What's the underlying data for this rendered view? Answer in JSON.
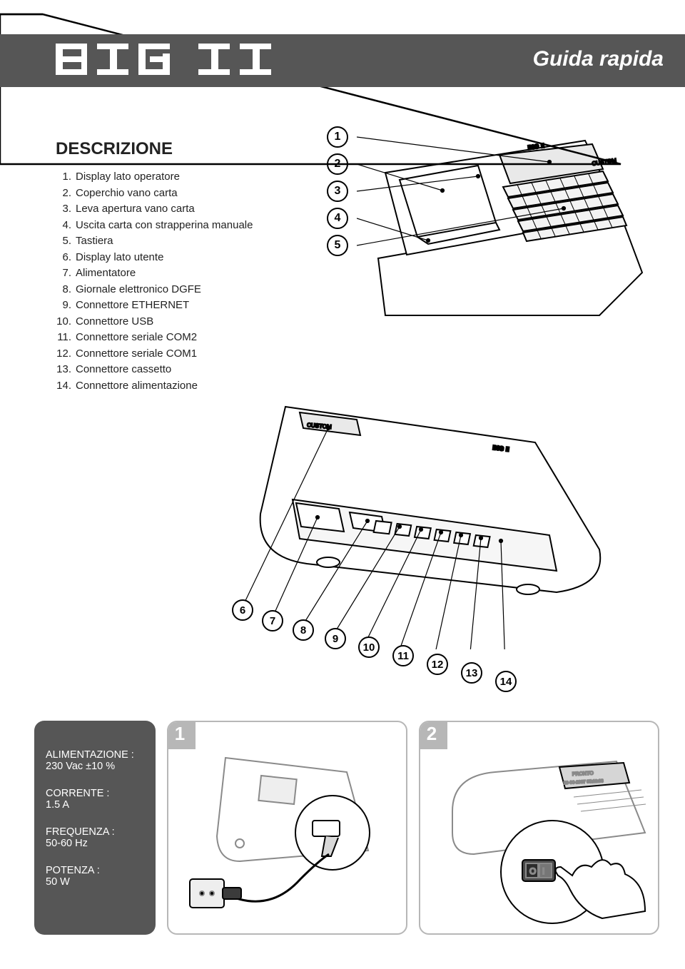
{
  "header": {
    "title": "Guida rapida",
    "logo_text": "BIG II"
  },
  "description": {
    "heading": "DESCRIZIONE",
    "items": [
      "Display lato operatore",
      "Coperchio vano carta",
      "Leva apertura vano carta",
      "Uscita carta con strapperina manuale",
      "Tastiera",
      "Display lato utente",
      "Alimentatore",
      "Giornale elettronico DGFE",
      "Connettore ETHERNET",
      "Connettore USB",
      "Connettore seriale COM2",
      "Connettore seriale COM1",
      "Connettore cassetto",
      "Connettore alimentazione"
    ]
  },
  "callouts_top": [
    "1",
    "2",
    "3",
    "4",
    "5"
  ],
  "callouts_bottom": [
    "6",
    "7",
    "8",
    "9",
    "10",
    "11",
    "12",
    "13",
    "14"
  ],
  "specs": [
    {
      "label": "ALIMENTAZIONE :",
      "value": "230 Vac ±10 %"
    },
    {
      "label": "CORRENTE :",
      "value": "1.5 A"
    },
    {
      "label": "FREQUENZA :",
      "value": "50-60 Hz"
    },
    {
      "label": "POTENZA :",
      "value": "50 W"
    }
  ],
  "steps": {
    "one": "1",
    "two": "2"
  },
  "colors": {
    "band": "#565656",
    "panel_border": "#b7b7b7",
    "text": "#222222",
    "white": "#ffffff"
  }
}
